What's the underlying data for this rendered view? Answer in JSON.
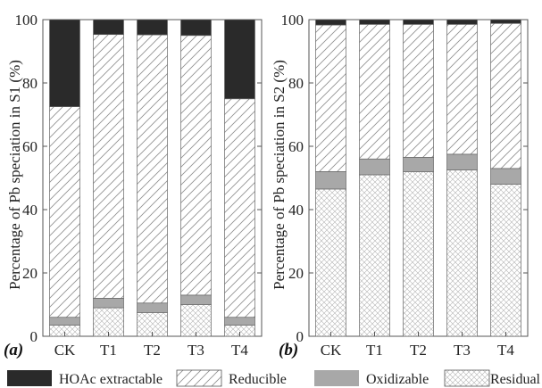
{
  "chart_data": [
    {
      "type": "bar",
      "stacked": true,
      "panel_label": "(a)",
      "categories": [
        "CK",
        "T1",
        "T2",
        "T3",
        "T4"
      ],
      "ylabel": "Percentage of Pb speciation in S1 (%)",
      "xlabel": "",
      "ylim": [
        0,
        100
      ],
      "yticks": [
        0,
        20,
        40,
        60,
        80,
        100
      ],
      "series": [
        {
          "name": "Residual",
          "values": [
            3.5,
            9.0,
            7.5,
            10.0,
            3.5
          ]
        },
        {
          "name": "Oxidizable",
          "values": [
            2.5,
            3.0,
            3.0,
            3.0,
            2.5
          ]
        },
        {
          "name": "Reducible",
          "values": [
            66.5,
            83.3,
            84.7,
            82.0,
            69.0
          ]
        },
        {
          "name": "HOAc extractable",
          "values": [
            27.5,
            4.7,
            4.8,
            5.0,
            25.0
          ]
        }
      ]
    },
    {
      "type": "bar",
      "stacked": true,
      "panel_label": "(b)",
      "categories": [
        "CK",
        "T1",
        "T2",
        "T3",
        "T4"
      ],
      "ylabel": "Percentage of Pb speciation in S2 (%)",
      "xlabel": "",
      "ylim": [
        0,
        100
      ],
      "yticks": [
        0,
        20,
        40,
        60,
        80,
        100
      ],
      "series": [
        {
          "name": "Residual",
          "values": [
            46.5,
            51.0,
            52.0,
            52.5,
            48.0
          ]
        },
        {
          "name": "Oxidizable",
          "values": [
            5.5,
            5.0,
            4.5,
            5.0,
            5.0
          ]
        },
        {
          "name": "Reducible",
          "values": [
            46.3,
            42.5,
            42.0,
            41.0,
            45.8
          ]
        },
        {
          "name": "HOAc extractable",
          "values": [
            1.7,
            1.5,
            1.5,
            1.5,
            1.2
          ]
        }
      ]
    }
  ],
  "legend": [
    {
      "name": "HOAc extractable",
      "style": "solid-dark"
    },
    {
      "name": "Reducible",
      "style": "diagonal-hatch"
    },
    {
      "name": "Oxidizable",
      "style": "solid-gray"
    },
    {
      "name": "Residual",
      "style": "crosshatch"
    }
  ],
  "colors": {
    "hoac": "#2a2a2a",
    "oxidizable": "#a8a8a8",
    "hatch_stroke": "#9a9a9a",
    "axis": "#555555"
  }
}
